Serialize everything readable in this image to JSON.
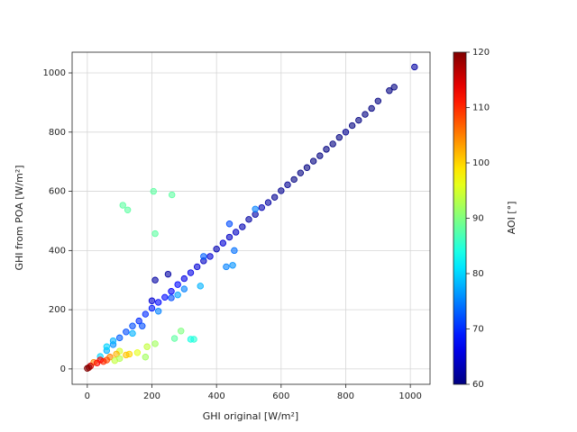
{
  "chart_data": {
    "type": "scatter",
    "xlabel": "GHI original [W/m²]",
    "ylabel": "GHI from POA [W/m²]",
    "x": [
      1013,
      950,
      935,
      900,
      880,
      860,
      840,
      820,
      800,
      780,
      760,
      740,
      720,
      700,
      680,
      660,
      640,
      620,
      600,
      580,
      560,
      540,
      520,
      500,
      480,
      460,
      440,
      420,
      400,
      380,
      360,
      340,
      320,
      300,
      280,
      260,
      240,
      220,
      200,
      180,
      160,
      140,
      120,
      100,
      80,
      60,
      40,
      20,
      10,
      5,
      0,
      520,
      440,
      455,
      450,
      430,
      360,
      350,
      300,
      280,
      260,
      220,
      170,
      140,
      200,
      250,
      210,
      110,
      125,
      205,
      262,
      210,
      330,
      320,
      290,
      270,
      210,
      185,
      180,
      155,
      130,
      120,
      100,
      90,
      70,
      60,
      50,
      40,
      30,
      85,
      100,
      60,
      80
    ],
    "y": [
      1020,
      952,
      940,
      905,
      880,
      860,
      840,
      822,
      800,
      782,
      760,
      742,
      720,
      702,
      680,
      662,
      640,
      622,
      602,
      580,
      562,
      545,
      522,
      505,
      480,
      462,
      445,
      425,
      405,
      380,
      365,
      345,
      325,
      305,
      285,
      262,
      242,
      225,
      205,
      185,
      162,
      145,
      125,
      105,
      82,
      62,
      42,
      22,
      10,
      5,
      2,
      540,
      490,
      400,
      350,
      345,
      380,
      280,
      270,
      250,
      240,
      195,
      145,
      120,
      230,
      320,
      300,
      553,
      537,
      600,
      588,
      457,
      100,
      100,
      128,
      103,
      85,
      75,
      40,
      55,
      50,
      47,
      60,
      50,
      40,
      30,
      25,
      30,
      20,
      28,
      35,
      75,
      95
    ],
    "color_values": [
      62,
      60,
      60,
      60,
      60,
      60,
      60,
      60,
      61,
      60,
      60,
      60,
      60,
      60,
      60,
      60,
      60,
      61,
      61,
      61,
      62,
      63,
      62,
      62,
      63,
      64,
      64,
      65,
      63,
      65,
      64,
      65,
      66,
      66,
      68,
      67,
      68,
      68,
      69,
      70,
      70,
      72,
      72,
      73,
      76,
      78,
      80,
      105,
      115,
      118,
      120,
      75,
      72,
      74,
      76,
      75,
      73,
      78,
      75,
      77,
      72,
      75,
      72,
      78,
      65,
      62,
      62,
      88,
      88,
      88,
      88,
      88,
      85,
      84,
      90,
      88,
      92,
      94,
      92,
      96,
      100,
      101,
      95,
      102,
      105,
      108,
      110,
      112,
      112,
      94,
      93,
      80,
      78
    ],
    "colormap": "jet",
    "xlim": [
      -47,
      1061
    ],
    "ylim": [
      -52,
      1070
    ],
    "xticks": [
      0,
      200,
      400,
      600,
      800,
      1000
    ],
    "yticks": [
      0,
      200,
      400,
      600,
      800,
      1000
    ],
    "grid": true,
    "colorbar": {
      "label": "AOI [°]",
      "lim": [
        60,
        120
      ],
      "ticks": [
        60,
        70,
        80,
        90,
        100,
        110,
        120
      ]
    }
  }
}
